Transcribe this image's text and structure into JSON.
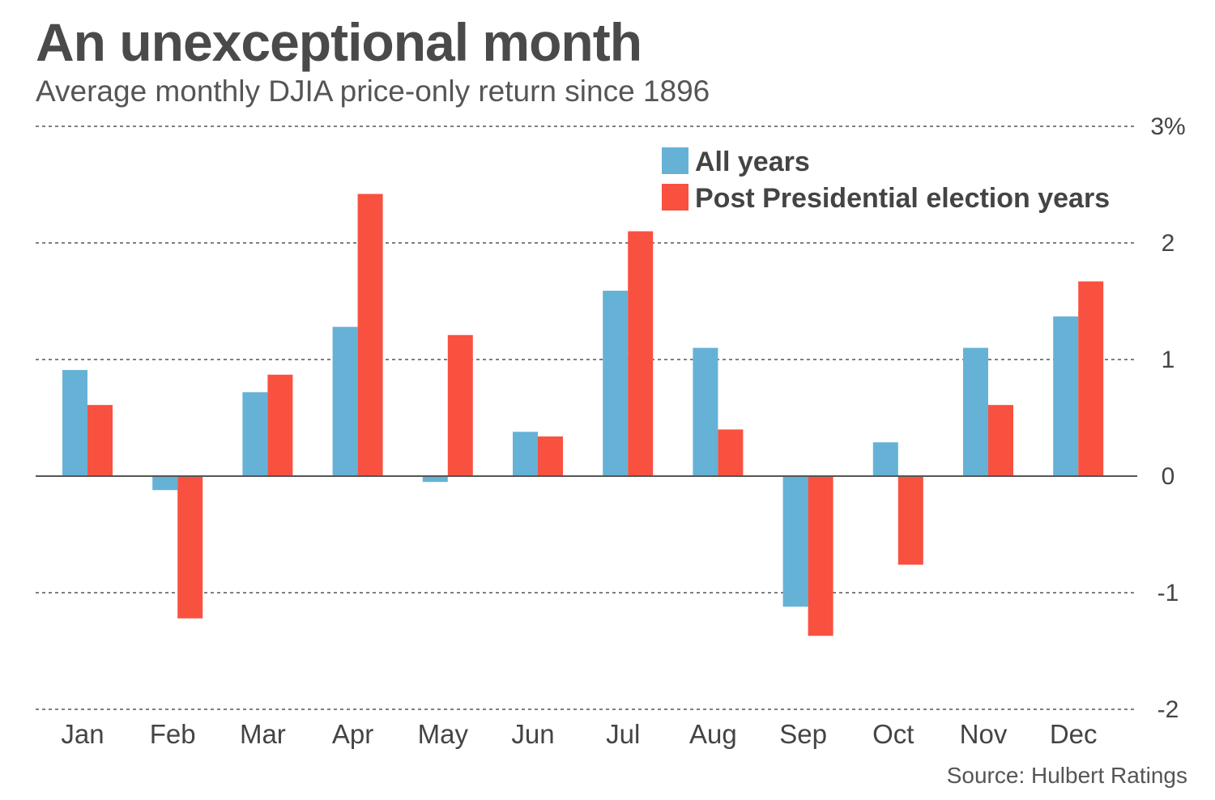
{
  "chart_data": {
    "type": "bar",
    "title": "An unexceptional month",
    "subtitle": "Average monthly DJIA price-only return since 1896",
    "source": "Source: Hulbert Ratings",
    "categories": [
      "Jan",
      "Feb",
      "Mar",
      "Apr",
      "May",
      "Jun",
      "Jul",
      "Aug",
      "Sep",
      "Oct",
      "Nov",
      "Dec"
    ],
    "series": [
      {
        "name": "All years",
        "color": "#66b2d6",
        "values": [
          0.91,
          -0.12,
          0.72,
          1.28,
          -0.05,
          0.38,
          1.59,
          1.1,
          -1.12,
          0.29,
          1.1,
          1.37
        ]
      },
      {
        "name": "Post Presidential election years",
        "color": "#f95140",
        "values": [
          0.61,
          -1.22,
          0.87,
          2.42,
          1.21,
          0.34,
          2.1,
          0.4,
          -1.37,
          -0.76,
          0.61,
          1.67
        ]
      }
    ],
    "ylim": [
      -2,
      3
    ],
    "yticks": [
      {
        "value": 3,
        "label": "3%"
      },
      {
        "value": 2,
        "label": "2"
      },
      {
        "value": 1,
        "label": "1"
      },
      {
        "value": 0,
        "label": "0"
      },
      {
        "value": -1,
        "label": "-1"
      },
      {
        "value": -2,
        "label": "-2"
      }
    ],
    "grid": true,
    "legend_position": "top-center"
  }
}
